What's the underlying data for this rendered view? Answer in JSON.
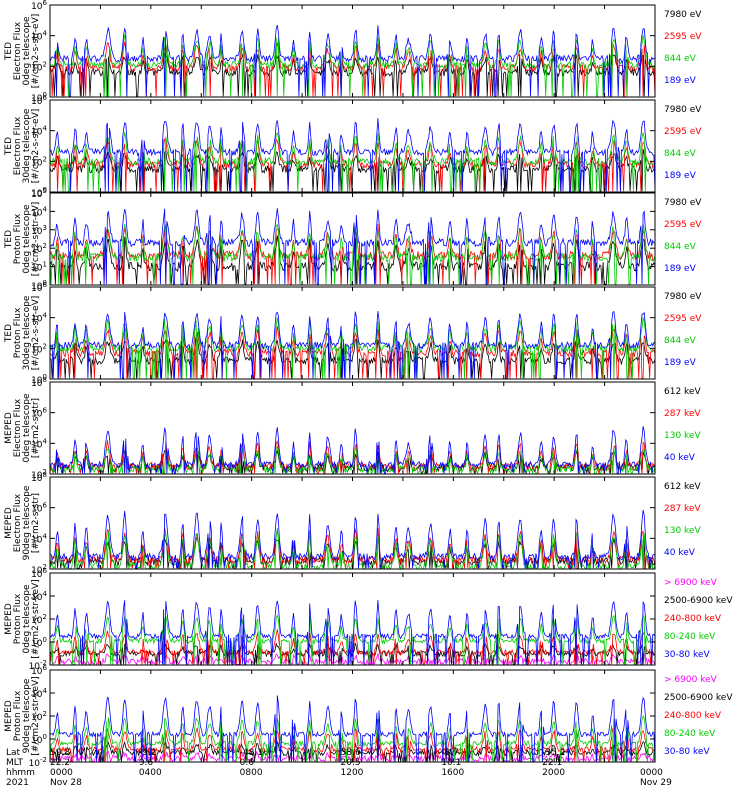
{
  "chart_data": [
    {
      "type": "line",
      "ylabel_lines": [
        "TED",
        "Electron Flux",
        "0deg telescope",
        "[#/cm2-s-str-eV]"
      ],
      "yscale": "log",
      "ylim_exp": [
        0,
        6
      ],
      "ytick_exps": [
        0,
        2,
        4,
        6
      ],
      "series": [
        {
          "name": "7980 eV",
          "color": "#000000",
          "base": 1.6,
          "amp": 1.2
        },
        {
          "name": "2595 eV",
          "color": "#ff0000",
          "base": 1.9,
          "amp": 1.6
        },
        {
          "name": "844 eV",
          "color": "#00cc00",
          "base": 2.1,
          "amp": 1.9
        },
        {
          "name": "189 eV",
          "color": "#0000ff",
          "base": 2.5,
          "amp": 2.1
        }
      ]
    },
    {
      "type": "line",
      "ylabel_lines": [
        "TED",
        "Electron Flux",
        "30deg telescope",
        "[#/cm2-s-str-eV]"
      ],
      "yscale": "log",
      "ylim_exp": [
        0,
        6
      ],
      "ytick_exps": [
        0,
        2,
        4,
        6
      ],
      "series": [
        {
          "name": "7980 eV",
          "color": "#000000",
          "base": 1.5,
          "amp": 1.1
        },
        {
          "name": "2595 eV",
          "color": "#ff0000",
          "base": 1.8,
          "amp": 1.6
        },
        {
          "name": "844 eV",
          "color": "#00cc00",
          "base": 2.0,
          "amp": 1.8
        },
        {
          "name": "189 eV",
          "color": "#0000ff",
          "base": 2.6,
          "amp": 2.2
        }
      ]
    },
    {
      "type": "line",
      "ylabel_lines": [
        "TED",
        "Proton Flux",
        "0deg telescope",
        "[#/cm2-s-str-eV]"
      ],
      "yscale": "log",
      "ylim_exp": [
        0,
        5
      ],
      "ytick_exps": [
        0,
        1,
        2,
        3,
        4,
        5
      ],
      "series": [
        {
          "name": "7980 eV",
          "color": "#000000",
          "base": 1.0,
          "amp": 1.5
        },
        {
          "name": "2595 eV",
          "color": "#ff0000",
          "base": 1.6,
          "amp": 1.6
        },
        {
          "name": "844 eV",
          "color": "#00cc00",
          "base": 1.5,
          "amp": 1.7
        },
        {
          "name": "189 eV",
          "color": "#0000ff",
          "base": 2.3,
          "amp": 1.8
        }
      ]
    },
    {
      "type": "line",
      "ylabel_lines": [
        "TED",
        "Proton Flux",
        "30deg telescope",
        "[#/cm2-s-str-eV]"
      ],
      "yscale": "log",
      "ylim_exp": [
        0,
        6
      ],
      "ytick_exps": [
        0,
        2,
        4,
        6
      ],
      "series": [
        {
          "name": "7980 eV",
          "color": "#000000",
          "base": 1.2,
          "amp": 1.4
        },
        {
          "name": "2595 eV",
          "color": "#ff0000",
          "base": 1.7,
          "amp": 1.6
        },
        {
          "name": "844 eV",
          "color": "#00cc00",
          "base": 2.0,
          "amp": 1.9
        },
        {
          "name": "189 eV",
          "color": "#0000ff",
          "base": 2.2,
          "amp": 2.3
        }
      ]
    },
    {
      "type": "line",
      "ylabel_lines": [
        "MEPED",
        "Electron Flux",
        "0deg telescope",
        "[#/cm2-s-str]"
      ],
      "yscale": "log",
      "ylim_exp": [
        2,
        8
      ],
      "ytick_exps": [
        2,
        4,
        6,
        8
      ],
      "series": [
        {
          "name": "612 keV",
          "color": "#000000",
          "base": 2.4,
          "amp": 1.0
        },
        {
          "name": "287 keV",
          "color": "#ff0000",
          "base": 2.5,
          "amp": 1.6
        },
        {
          "name": "130 keV",
          "color": "#00cc00",
          "base": 2.3,
          "amp": 1.4
        },
        {
          "name": "40 keV",
          "color": "#0000ff",
          "base": 2.6,
          "amp": 2.4
        }
      ]
    },
    {
      "type": "line",
      "ylabel_lines": [
        "MEPED",
        "Electron Flux",
        "90deg telescope",
        "[#/cm2-s-str]"
      ],
      "yscale": "log",
      "ylim_exp": [
        2,
        8
      ],
      "ytick_exps": [
        2,
        4,
        6,
        8
      ],
      "series": [
        {
          "name": "612 keV",
          "color": "#000000",
          "base": 2.5,
          "amp": 1.5
        },
        {
          "name": "287 keV",
          "color": "#ff0000",
          "base": 2.6,
          "amp": 2.0
        },
        {
          "name": "130 keV",
          "color": "#00cc00",
          "base": 2.2,
          "amp": 2.3
        },
        {
          "name": "40 keV",
          "color": "#0000ff",
          "base": 2.8,
          "amp": 3.0
        }
      ]
    },
    {
      "type": "line",
      "ylabel_lines": [
        "MEPED",
        "Proton Flux",
        "0deg telescope",
        "[#/cm2-s-str-keV]"
      ],
      "yscale": "log",
      "ylim_exp": [
        -2,
        6
      ],
      "ytick_exps": [
        -2,
        0,
        2,
        4,
        6
      ],
      "series": [
        {
          "name": "> 6900 keV",
          "color": "#ff00ff",
          "base": -1.7,
          "amp": 0.5
        },
        {
          "name": "2500-6900 keV",
          "color": "#000000",
          "base": -1.0,
          "amp": 0.8
        },
        {
          "name": "240-800 keV",
          "color": "#ff0000",
          "base": -0.9,
          "amp": 1.8
        },
        {
          "name": "80-240 keV",
          "color": "#00cc00",
          "base": 0.1,
          "amp": 2.2
        },
        {
          "name": "30-80 keV",
          "color": "#0000ff",
          "base": 0.5,
          "amp": 3.2
        }
      ]
    },
    {
      "type": "line",
      "ylabel_lines": [
        "MEPED",
        "Proton Flux",
        "90deg telescope",
        "[#/cm2-s-str-keV]"
      ],
      "yscale": "log",
      "ylim_exp": [
        -2,
        6
      ],
      "ytick_exps": [
        -2,
        0,
        2,
        4,
        6
      ],
      "series": [
        {
          "name": "> 6900 keV",
          "color": "#ff00ff",
          "base": -1.7,
          "amp": 0.5
        },
        {
          "name": "2500-6900 keV",
          "color": "#000000",
          "base": -1.2,
          "amp": 0.8
        },
        {
          "name": "240-800 keV",
          "color": "#ff0000",
          "base": -0.9,
          "amp": 1.8
        },
        {
          "name": "80-240 keV",
          "color": "#00cc00",
          "base": -0.4,
          "amp": 2.4
        },
        {
          "name": "30-80 keV",
          "color": "#0000ff",
          "base": 0.4,
          "amp": 3.3
        }
      ]
    }
  ],
  "x_axis": {
    "row_labels": [
      "Lat",
      "MLT",
      "hhmm",
      "2021"
    ],
    "columns": [
      {
        "lat": "59.8",
        "mlt": "22.2",
        "hhmm": "0000",
        "date": "Nov 28"
      },
      {
        "lat": "-9.2",
        "mlt": "9.6",
        "hhmm": "0400",
        "date": ""
      },
      {
        "lat": "-48.1",
        "mlt": "0.6",
        "hhmm": "0800",
        "date": ""
      },
      {
        "lat": "58.6",
        "mlt": "20.5",
        "hhmm": "1200",
        "date": ""
      },
      {
        "lat": "-8.7",
        "mlt": "10.1",
        "hhmm": "1600",
        "date": ""
      },
      {
        "lat": "-35.2",
        "mlt": "22.1",
        "hhmm": "2000",
        "date": ""
      },
      {
        "lat": "",
        "mlt": "",
        "hhmm": "0000",
        "date": "Nov 29"
      }
    ]
  }
}
